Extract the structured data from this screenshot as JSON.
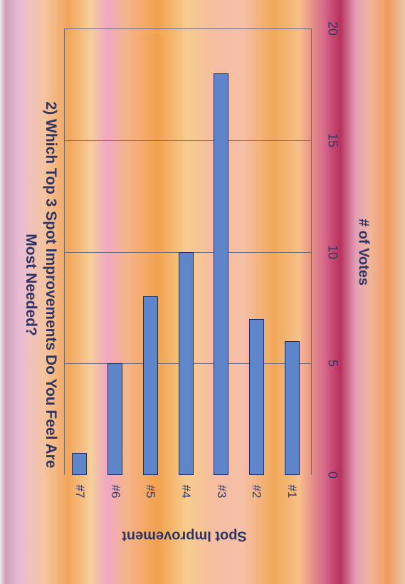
{
  "chart_data": {
    "type": "bar",
    "orientation": "horizontal",
    "title": "2) Which Top 3 Spot Improvements Do You Feel Are Most Needed?",
    "title_lines": [
      "2)  Which Top 3 Spot Improvements Do You Feel Are",
      "Most Needed?"
    ],
    "xlabel": "# of Votes",
    "ylabel": "Spot Improvement",
    "categories": [
      "#7",
      "#6",
      "#5",
      "#4",
      "#3",
      "#2",
      "#1"
    ],
    "values": [
      1,
      5,
      8,
      10,
      18,
      7,
      6
    ],
    "xlim": [
      0,
      20
    ],
    "x_ticks": [
      0,
      5,
      10,
      15,
      20
    ],
    "grid": true,
    "bar_color": "#5f86c8",
    "bar_edge_color": "#1e2c66"
  }
}
